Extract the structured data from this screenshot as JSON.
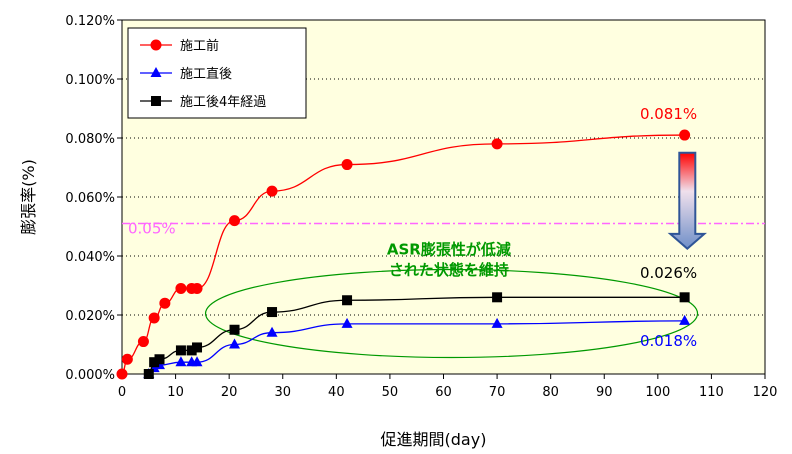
{
  "chart_data": {
    "type": "line",
    "xlabel": "促進期間(day)",
    "ylabel": "膨張率(%)",
    "xlim": [
      0,
      120
    ],
    "ylim": [
      0,
      0.12
    ],
    "x_ticks": [
      "0",
      "10",
      "20",
      "30",
      "40",
      "50",
      "60",
      "70",
      "80",
      "90",
      "100",
      "110",
      "120"
    ],
    "y_ticks": [
      "0.000%",
      "0.020%",
      "0.040%",
      "0.060%",
      "0.080%",
      "0.100%",
      "0.120%"
    ],
    "grid": "horizontal dotted",
    "plot_background": "#ffffe0",
    "legend_position": "top-left",
    "series": [
      {
        "name": "施工前",
        "color": "#ff0000",
        "marker": "circle",
        "x": [
          0,
          1,
          4,
          6,
          8,
          11,
          13,
          14,
          21,
          28,
          42,
          70,
          105
        ],
        "y": [
          0.0,
          0.005,
          0.011,
          0.019,
          0.024,
          0.029,
          0.029,
          0.029,
          0.052,
          0.062,
          0.071,
          0.078,
          0.081
        ]
      },
      {
        "name": "施工直後",
        "color": "#0000ff",
        "marker": "triangle",
        "x": [
          5,
          6,
          7,
          11,
          13,
          14,
          21,
          28,
          42,
          70,
          105
        ],
        "y": [
          0.0,
          0.002,
          0.003,
          0.004,
          0.004,
          0.004,
          0.01,
          0.014,
          0.017,
          0.017,
          0.018
        ]
      },
      {
        "name": "施工後4年経過",
        "color": "#000000",
        "marker": "square",
        "x": [
          5,
          6,
          7,
          11,
          13,
          14,
          21,
          28,
          42,
          70,
          105
        ],
        "y": [
          0.0,
          0.004,
          0.005,
          0.008,
          0.008,
          0.009,
          0.015,
          0.021,
          0.025,
          0.026,
          0.026
        ]
      }
    ],
    "reference_line": {
      "label": "0.05%",
      "y": 0.051,
      "color": "#ff66ff"
    },
    "annotations": {
      "red_end": {
        "text": "0.081%",
        "color": "#ff0000"
      },
      "black_end": {
        "text": "0.026%",
        "color": "#000000"
      },
      "blue_end": {
        "text": "0.018%",
        "color": "#0000ff"
      },
      "ellipse_line1": "ASR膨張性が低減",
      "ellipse_line2": "された状態を維持",
      "ellipse_color": "#009900"
    }
  }
}
